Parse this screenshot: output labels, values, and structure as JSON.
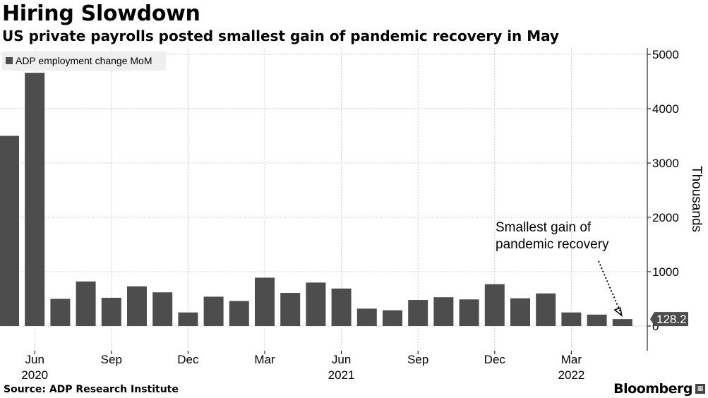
{
  "header": {
    "title": "Hiring Slowdown",
    "subtitle": "US private payrolls posted smallest gain of pandemic recovery in May"
  },
  "footer": {
    "source": "Source: ADP Research Institute",
    "brand": "Bloomberg",
    "brand_mark_icon": "bloomberg-terminal-icon"
  },
  "colors": {
    "bar": "#4d4d4d",
    "grid": "#cfcfcf",
    "label_bg": "#4d4d4d",
    "legend_bg": "#efefef"
  },
  "chart_data": {
    "type": "bar",
    "title": "Hiring Slowdown",
    "subtitle": "US private payrolls posted smallest gain of pandemic recovery in May",
    "ylabel": "Thousands",
    "xlabel": "",
    "ylim": [
      -450,
      5100
    ],
    "yticks": [
      0,
      1000,
      2000,
      3000,
      4000,
      5000
    ],
    "grid": true,
    "legend": {
      "position": "top-left",
      "entries": [
        "ADP employment change MoM"
      ]
    },
    "series": [
      {
        "name": "ADP employment change MoM",
        "categories": [
          "2020-05",
          "2020-06",
          "2020-07",
          "2020-08",
          "2020-09",
          "2020-10",
          "2020-11",
          "2020-12",
          "2021-01",
          "2021-02",
          "2021-03",
          "2021-04",
          "2021-05",
          "2021-06",
          "2021-07",
          "2021-08",
          "2021-09",
          "2021-10",
          "2021-11",
          "2021-12",
          "2022-01",
          "2022-02",
          "2022-03",
          "2022-04",
          "2022-05"
        ],
        "values": [
          3500,
          4660,
          500,
          820,
          520,
          730,
          620,
          250,
          540,
          460,
          890,
          610,
          800,
          690,
          320,
          290,
          480,
          530,
          490,
          770,
          510,
          600,
          250,
          210,
          128.2
        ]
      }
    ],
    "xtick_labels": [
      {
        "index": 1,
        "month": "Jun",
        "year": "2020"
      },
      {
        "index": 4,
        "month": "Sep",
        "year": ""
      },
      {
        "index": 7,
        "month": "Dec",
        "year": ""
      },
      {
        "index": 10,
        "month": "Mar",
        "year": ""
      },
      {
        "index": 13,
        "month": "Jun",
        "year": "2021"
      },
      {
        "index": 16,
        "month": "Sep",
        "year": ""
      },
      {
        "index": 19,
        "month": "Dec",
        "year": ""
      },
      {
        "index": 22,
        "month": "Mar",
        "year": "2022"
      }
    ],
    "last_value_label": "128.2",
    "annotation": {
      "lines": [
        "Smallest gain of",
        "pandemic recovery"
      ],
      "target_index": 24
    }
  }
}
